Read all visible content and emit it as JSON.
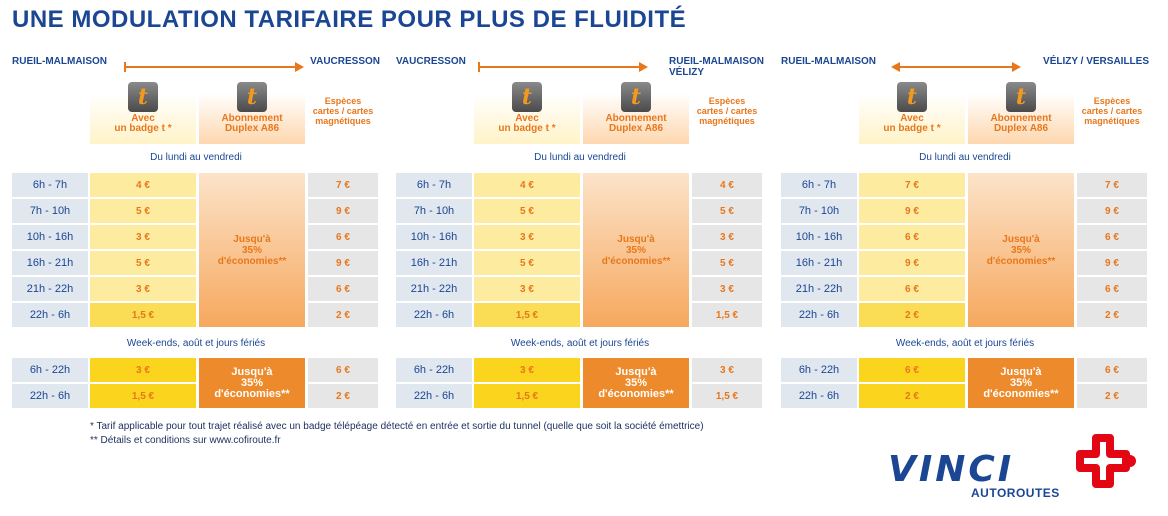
{
  "title": "UNE MODULATION TARIFAIRE POUR PLUS DE FLUIDITÉ",
  "column_headers": {
    "badge_line1": "Avec",
    "badge_line2": "un badge t *",
    "abonnement_line1": "Abonnement",
    "abonnement_line2": "Duplex A86",
    "especes_line1": "Espèces",
    "especes_line2": "cartes / cartes",
    "especes_line3": "magnétiques",
    "logo_letter": "t"
  },
  "section_weekday": "Du lundi au vendredi",
  "section_weekend": "Week-ends, août et jours fériés",
  "abonnement_weekday": [
    "Jusqu'à",
    "35%",
    "d'économies**"
  ],
  "abonnement_weekend": [
    "Jusqu'à",
    "35%",
    "d'économies**"
  ],
  "panels": [
    {
      "from": "RUEIL-MALMAISON",
      "to_line1": "VAUCRESSON",
      "to_line2": "",
      "arrow": "right",
      "weekday": [
        {
          "time": "6h - 7h",
          "badge": "4 €",
          "especes": "7 €"
        },
        {
          "time": "7h - 10h",
          "badge": "5 €",
          "especes": "9 €"
        },
        {
          "time": "10h - 16h",
          "badge": "3 €",
          "especes": "6 €"
        },
        {
          "time": "16h - 21h",
          "badge": "5 €",
          "especes": "9 €"
        },
        {
          "time": "21h - 22h",
          "badge": "3 €",
          "especes": "6 €"
        },
        {
          "time": "22h - 6h",
          "badge": "1,5 €",
          "especes": "2 €"
        }
      ],
      "weekend": [
        {
          "time": "6h - 22h",
          "badge": "3 €",
          "especes": "6 €"
        },
        {
          "time": "22h - 6h",
          "badge": "1,5 €",
          "especes": "2 €"
        }
      ]
    },
    {
      "from": "VAUCRESSON",
      "to_line1": "RUEIL-MALMAISON",
      "to_line2": "VÉLIZY",
      "arrow": "right",
      "weekday": [
        {
          "time": "6h - 7h",
          "badge": "4 €",
          "especes": "4 €"
        },
        {
          "time": "7h - 10h",
          "badge": "5 €",
          "especes": "5 €"
        },
        {
          "time": "10h - 16h",
          "badge": "3 €",
          "especes": "3 €"
        },
        {
          "time": "16h - 21h",
          "badge": "5 €",
          "especes": "5 €"
        },
        {
          "time": "21h - 22h",
          "badge": "3 €",
          "especes": "3 €"
        },
        {
          "time": "22h - 6h",
          "badge": "1,5 €",
          "especes": "1,5 €"
        }
      ],
      "weekend": [
        {
          "time": "6h - 22h",
          "badge": "3 €",
          "especes": "3 €"
        },
        {
          "time": "22h - 6h",
          "badge": "1,5 €",
          "especes": "1,5 €"
        }
      ]
    },
    {
      "from": "RUEIL-MALMAISON",
      "to_line1": "VÉLIZY / VERSAILLES",
      "to_line2": "",
      "arrow": "both",
      "weekday": [
        {
          "time": "6h - 7h",
          "badge": "7 €",
          "especes": "7 €"
        },
        {
          "time": "7h - 10h",
          "badge": "9 €",
          "especes": "9 €"
        },
        {
          "time": "10h - 16h",
          "badge": "6 €",
          "especes": "6 €"
        },
        {
          "time": "16h - 21h",
          "badge": "9 €",
          "especes": "9 €"
        },
        {
          "time": "21h - 22h",
          "badge": "6 €",
          "especes": "6 €"
        },
        {
          "time": "22h - 6h",
          "badge": "2 €",
          "especes": "2 €"
        }
      ],
      "weekend": [
        {
          "time": "6h - 22h",
          "badge": "6 €",
          "especes": "6 €"
        },
        {
          "time": "22h - 6h",
          "badge": "2 €",
          "especes": "2 €"
        }
      ]
    }
  ],
  "notes": [
    "* Tarif applicable pour tout trajet réalisé avec un badge télépéage détecté en entrée et sortie du tunnel (quelle que soit la société émettrice)",
    "** Détails et conditions sur www.cofiroute.fr"
  ],
  "brand": {
    "name": "VINCI",
    "sub": "AUTOROUTES"
  },
  "colors": {
    "blue": "#1b4693",
    "orange": "#e8771c",
    "brand_red": "#e30613"
  }
}
